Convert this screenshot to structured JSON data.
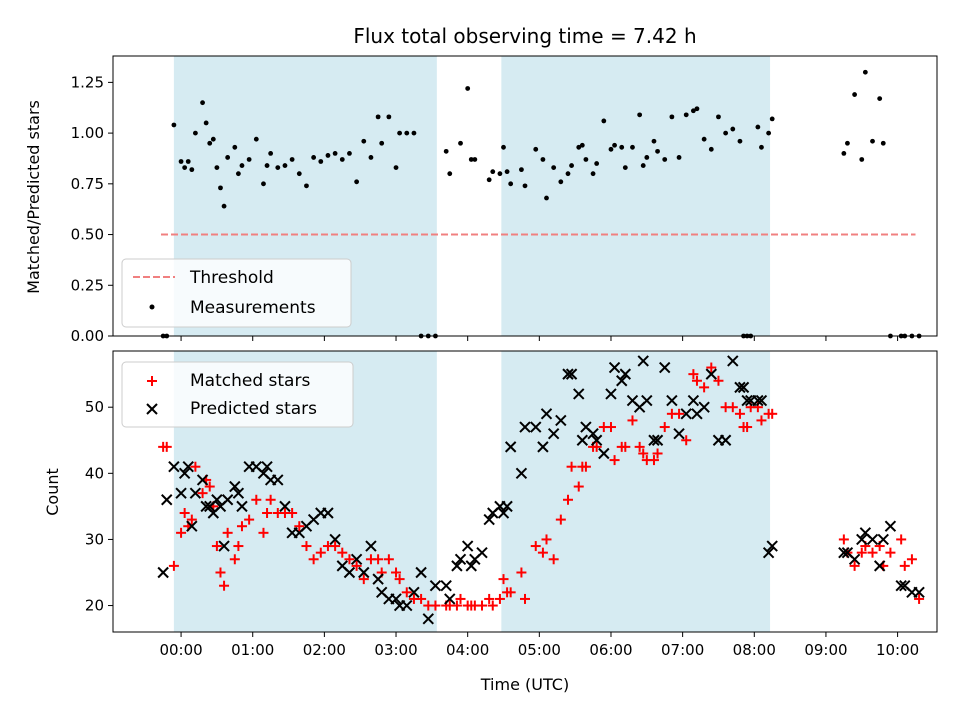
{
  "chart_data": [
    {
      "type": "scatter",
      "title": "Flux total observing time = 7.42 h",
      "xlabel": "",
      "ylabel": "Matched/Predicted stars",
      "xlim": [
        -0.95,
        10.55
      ],
      "ylim": [
        0.0,
        1.38
      ],
      "yticks": [
        "0.00",
        "0.25",
        "0.50",
        "0.75",
        "1.00",
        "1.25"
      ],
      "xtick_hours": [
        0,
        1,
        2,
        3,
        4,
        5,
        6,
        7,
        8,
        9,
        10
      ],
      "shaded_intervals": [
        [
          -0.1,
          3.57
        ],
        [
          4.47,
          8.22
        ]
      ],
      "threshold": {
        "value": 0.5,
        "x_range": [
          -0.28,
          10.25
        ],
        "color": "#f08080",
        "style": "dashed"
      },
      "legend": {
        "position": "lower-left",
        "entries": [
          "Threshold",
          "Measurements"
        ]
      },
      "series": [
        {
          "name": "Measurements",
          "marker": "dot",
          "color": "#000000",
          "x": [
            -0.25,
            -0.2,
            -0.1,
            0.0,
            0.05,
            0.1,
            0.15,
            0.2,
            0.3,
            0.35,
            0.4,
            0.45,
            0.5,
            0.55,
            0.6,
            0.65,
            0.75,
            0.8,
            0.85,
            0.95,
            1.05,
            1.15,
            1.2,
            1.25,
            1.35,
            1.45,
            1.55,
            1.65,
            1.75,
            1.85,
            1.95,
            2.05,
            2.15,
            2.25,
            2.35,
            2.45,
            2.55,
            2.65,
            2.75,
            2.8,
            2.9,
            3.0,
            3.05,
            3.15,
            3.25,
            3.35,
            3.45,
            3.55,
            3.7,
            3.75,
            3.9,
            4.0,
            4.05,
            4.1,
            4.3,
            4.35,
            4.45,
            4.5,
            4.55,
            4.6,
            4.75,
            4.8,
            4.95,
            5.05,
            5.1,
            5.2,
            5.3,
            5.4,
            5.45,
            5.55,
            5.6,
            5.65,
            5.75,
            5.8,
            5.9,
            6.0,
            6.05,
            6.15,
            6.2,
            6.3,
            6.4,
            6.45,
            6.5,
            6.6,
            6.65,
            6.75,
            6.85,
            6.95,
            7.05,
            7.15,
            7.2,
            7.3,
            7.4,
            7.5,
            7.6,
            7.7,
            7.8,
            7.85,
            7.9,
            7.95,
            8.05,
            8.1,
            8.2,
            8.25,
            9.25,
            9.3,
            9.4,
            9.5,
            9.55,
            9.65,
            9.75,
            9.8,
            9.9,
            10.05,
            10.1,
            10.2,
            10.3
          ],
          "y": [
            0.0,
            0.0,
            1.04,
            0.86,
            0.83,
            0.86,
            0.82,
            1.0,
            1.15,
            1.05,
            0.95,
            0.97,
            0.83,
            0.73,
            0.64,
            0.88,
            0.93,
            0.8,
            0.84,
            0.87,
            0.97,
            0.75,
            0.84,
            0.9,
            0.83,
            0.84,
            0.87,
            0.8,
            0.74,
            0.88,
            0.86,
            0.89,
            0.9,
            0.87,
            0.9,
            0.76,
            0.96,
            0.88,
            1.08,
            0.95,
            1.08,
            0.83,
            1.0,
            1.0,
            1.0,
            0.0,
            0.0,
            0.0,
            0.91,
            0.8,
            0.95,
            1.22,
            0.87,
            0.87,
            0.77,
            0.81,
            0.8,
            0.93,
            0.81,
            0.75,
            0.82,
            0.74,
            0.92,
            0.87,
            0.68,
            0.83,
            0.76,
            0.8,
            0.84,
            0.93,
            0.94,
            0.87,
            0.8,
            0.85,
            1.06,
            0.92,
            0.94,
            0.93,
            0.83,
            0.93,
            1.09,
            0.84,
            0.88,
            0.96,
            0.91,
            0.87,
            1.08,
            0.88,
            1.09,
            1.11,
            1.12,
            0.97,
            0.92,
            1.08,
            1.0,
            1.02,
            0.96,
            0.0,
            0.0,
            0.0,
            1.03,
            0.93,
            1.0,
            1.07,
            0.9,
            0.95,
            1.19,
            0.87,
            1.3,
            0.96,
            1.17,
            0.95,
            0.0,
            0.0,
            0.0,
            0.0,
            0.0
          ]
        }
      ]
    },
    {
      "type": "scatter",
      "title": "",
      "xlabel": "Time (UTC)",
      "ylabel": "Count",
      "xlim": [
        -0.95,
        10.55
      ],
      "ylim": [
        16,
        58.5
      ],
      "yticks": [
        "20",
        "30",
        "40",
        "50"
      ],
      "xtick_labels": [
        "00:00",
        "01:00",
        "02:00",
        "03:00",
        "04:00",
        "05:00",
        "06:00",
        "07:00",
        "08:00",
        "09:00",
        "10:00"
      ],
      "shaded_intervals": [
        [
          -0.1,
          3.57
        ],
        [
          4.47,
          8.22
        ]
      ],
      "legend": {
        "position": "upper-left",
        "entries": [
          "Matched stars",
          "Predicted stars"
        ]
      },
      "series": [
        {
          "name": "Matched stars",
          "marker": "plus",
          "color": "#ff0000",
          "x": [
            -0.25,
            -0.2,
            -0.1,
            0.0,
            0.05,
            0.1,
            0.15,
            0.2,
            0.3,
            0.35,
            0.4,
            0.45,
            0.5,
            0.55,
            0.6,
            0.65,
            0.75,
            0.8,
            0.85,
            0.95,
            1.05,
            1.15,
            1.2,
            1.25,
            1.35,
            1.45,
            1.55,
            1.65,
            1.75,
            1.85,
            1.95,
            2.05,
            2.15,
            2.25,
            2.35,
            2.45,
            2.55,
            2.65,
            2.75,
            2.8,
            2.9,
            3.0,
            3.05,
            3.15,
            3.25,
            3.35,
            3.45,
            3.55,
            3.7,
            3.75,
            3.85,
            3.9,
            4.0,
            4.05,
            4.1,
            4.2,
            4.3,
            4.35,
            4.45,
            4.5,
            4.55,
            4.6,
            4.75,
            4.8,
            4.95,
            5.05,
            5.1,
            5.2,
            5.3,
            5.4,
            5.45,
            5.55,
            5.6,
            5.65,
            5.75,
            5.8,
            5.9,
            6.0,
            6.05,
            6.15,
            6.2,
            6.3,
            6.4,
            6.45,
            6.5,
            6.6,
            6.65,
            6.75,
            6.85,
            6.95,
            7.05,
            7.15,
            7.2,
            7.3,
            7.4,
            7.5,
            7.6,
            7.7,
            7.8,
            7.85,
            7.9,
            7.95,
            8.05,
            8.1,
            8.2,
            8.25,
            9.25,
            9.3,
            9.4,
            9.5,
            9.55,
            9.65,
            9.75,
            9.8,
            9.9,
            10.05,
            10.1,
            10.2,
            10.3
          ],
          "y": [
            44,
            44,
            26,
            31,
            34,
            32,
            33,
            41,
            37,
            39,
            38,
            35,
            29,
            25,
            23,
            31,
            27,
            29,
            32,
            33,
            36,
            31,
            34,
            36,
            34,
            34,
            34,
            32,
            29,
            27,
            28,
            29,
            29,
            28,
            27,
            26,
            24,
            27,
            27,
            25,
            27,
            25,
            24,
            22,
            21,
            21,
            20,
            20,
            20,
            20,
            20,
            21,
            20,
            20,
            20,
            20,
            21,
            20,
            21,
            24,
            22,
            22,
            25,
            21,
            29,
            28,
            30,
            27,
            33,
            36,
            41,
            38,
            41,
            41,
            44,
            44,
            47,
            47,
            42,
            44,
            44,
            48,
            44,
            43,
            42,
            42,
            43,
            47,
            49,
            49,
            45,
            55,
            54,
            53,
            56,
            54,
            50,
            50,
            49,
            47,
            47,
            50,
            50,
            48,
            49,
            49,
            30,
            28,
            26,
            28,
            29,
            28,
            29,
            26,
            28,
            30,
            26,
            27,
            21
          ]
        },
        {
          "name": "Predicted stars",
          "marker": "x",
          "color": "#000000",
          "x": [
            -0.25,
            -0.2,
            -0.1,
            0.0,
            0.05,
            0.1,
            0.15,
            0.2,
            0.3,
            0.35,
            0.4,
            0.45,
            0.5,
            0.55,
            0.6,
            0.65,
            0.75,
            0.8,
            0.85,
            0.95,
            1.05,
            1.15,
            1.2,
            1.25,
            1.35,
            1.45,
            1.55,
            1.65,
            1.75,
            1.85,
            1.95,
            2.05,
            2.15,
            2.25,
            2.35,
            2.45,
            2.55,
            2.65,
            2.75,
            2.8,
            2.9,
            3.0,
            3.05,
            3.15,
            3.25,
            3.35,
            3.45,
            3.55,
            3.7,
            3.75,
            3.85,
            3.9,
            4.0,
            4.05,
            4.1,
            4.2,
            4.3,
            4.35,
            4.45,
            4.5,
            4.55,
            4.6,
            4.75,
            4.8,
            4.95,
            5.05,
            5.1,
            5.2,
            5.3,
            5.4,
            5.45,
            5.55,
            5.6,
            5.65,
            5.75,
            5.8,
            5.9,
            6.0,
            6.05,
            6.15,
            6.2,
            6.3,
            6.4,
            6.45,
            6.5,
            6.6,
            6.65,
            6.75,
            6.85,
            6.95,
            7.05,
            7.15,
            7.2,
            7.3,
            7.4,
            7.5,
            7.6,
            7.7,
            7.8,
            7.85,
            7.9,
            7.95,
            8.05,
            8.1,
            8.2,
            8.25,
            9.25,
            9.3,
            9.4,
            9.5,
            9.55,
            9.65,
            9.75,
            9.8,
            9.9,
            10.05,
            10.1,
            10.2,
            10.3
          ],
          "y": [
            25,
            36,
            41,
            37,
            40,
            41,
            32,
            37,
            39,
            35,
            35,
            34,
            36,
            35,
            29,
            36,
            38,
            37,
            35,
            41,
            41,
            40,
            41,
            39,
            39,
            35,
            31,
            31,
            32,
            33,
            34,
            34,
            30,
            26,
            25,
            27,
            25,
            29,
            24,
            22,
            21,
            21,
            20,
            20,
            22,
            25,
            18,
            23,
            23,
            21,
            26,
            27,
            29,
            26,
            27,
            28,
            33,
            34,
            35,
            34,
            35,
            44,
            40,
            47,
            47,
            44,
            49,
            46,
            48,
            55,
            55,
            52,
            45,
            47,
            46,
            45,
            43,
            52,
            56,
            54,
            55,
            51,
            50,
            57,
            51,
            45,
            45,
            56,
            51,
            46,
            49,
            51,
            49,
            50,
            55,
            45,
            45,
            57,
            53,
            53,
            51,
            51,
            51,
            51,
            28,
            29,
            28,
            28,
            27,
            30,
            31,
            30,
            26,
            30,
            32,
            23,
            23,
            22,
            22
          ]
        }
      ]
    }
  ]
}
